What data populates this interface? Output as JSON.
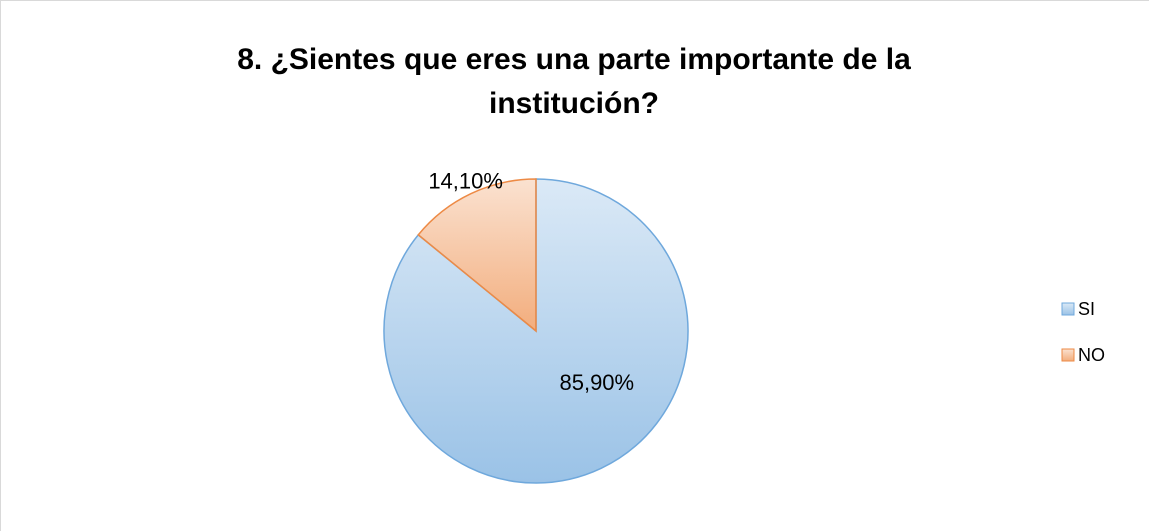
{
  "chart_data": {
    "type": "pie",
    "title": "8. ¿Sientes que eres una parte importante de la institución?",
    "categories": [
      "SI",
      "NO"
    ],
    "values": [
      85.9,
      14.1
    ],
    "value_labels": [
      "85,90%",
      "14,10%"
    ],
    "colors": [
      "#6fa8dc",
      "#ed8a45"
    ],
    "legend": "right"
  }
}
